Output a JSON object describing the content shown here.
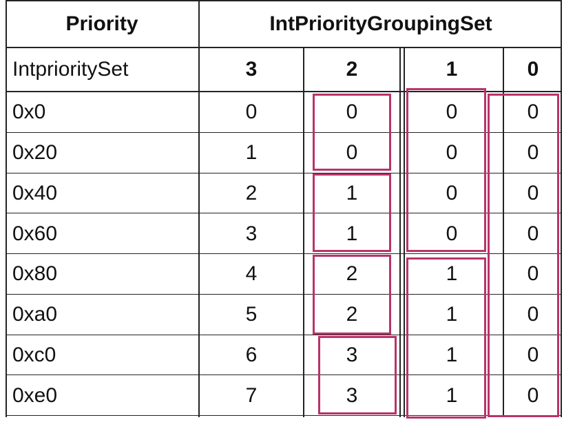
{
  "header": {
    "priority_label": "Priority",
    "grouping_label": "IntPriorityGroupingSet",
    "set_label": "IntprioritySet",
    "grouping_cols": [
      "3",
      "2",
      "1",
      "0"
    ]
  },
  "rows": [
    {
      "priority": "0x0",
      "values": [
        "0",
        "0",
        "0",
        "0"
      ]
    },
    {
      "priority": "0x20",
      "values": [
        "1",
        "0",
        "0",
        "0"
      ]
    },
    {
      "priority": "0x40",
      "values": [
        "2",
        "1",
        "0",
        "0"
      ]
    },
    {
      "priority": "0x60",
      "values": [
        "3",
        "1",
        "0",
        "0"
      ]
    },
    {
      "priority": "0x80",
      "values": [
        "4",
        "2",
        "1",
        "0"
      ]
    },
    {
      "priority": "0xa0",
      "values": [
        "5",
        "2",
        "1",
        "0"
      ]
    },
    {
      "priority": "0xc0",
      "values": [
        "6",
        "3",
        "1",
        "0"
      ]
    },
    {
      "priority": "0xe0",
      "values": [
        "7",
        "3",
        "1",
        "0"
      ]
    }
  ],
  "colors": {
    "group_box": "#b8336a",
    "grid": "#222222"
  }
}
